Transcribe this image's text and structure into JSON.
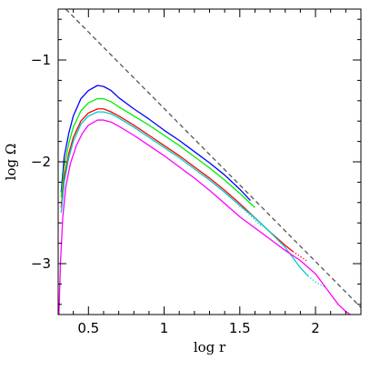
{
  "chart_data": {
    "type": "line",
    "title": "",
    "xlabel": "log r",
    "ylabel": "log Ω",
    "xlim": [
      0.3,
      2.3
    ],
    "ylim": [
      -3.5,
      -0.5
    ],
    "x_ticks_major": [
      0.5,
      1,
      1.5,
      2
    ],
    "x_tick_labels": [
      "0.5",
      "1",
      "1.5",
      "2"
    ],
    "y_ticks_major": [
      -1,
      -2,
      -3
    ],
    "y_tick_labels": [
      "−1",
      "−2",
      "−3"
    ],
    "minor_tick_step_x": 0.1,
    "minor_tick_step_y": 0.2,
    "grid": false,
    "legend": "none",
    "series": [
      {
        "color": "#0000ff",
        "style": "solid",
        "x": [
          0.32,
          0.34,
          0.37,
          0.4,
          0.45,
          0.5,
          0.56,
          0.6,
          0.65,
          0.7,
          0.8,
          0.9,
          1.0,
          1.1,
          1.2,
          1.3,
          1.4,
          1.5,
          1.57
        ],
        "y": [
          -2.3,
          -1.95,
          -1.72,
          -1.55,
          -1.38,
          -1.3,
          -1.25,
          -1.26,
          -1.3,
          -1.37,
          -1.48,
          -1.58,
          -1.69,
          -1.79,
          -1.9,
          -2.01,
          -2.13,
          -2.27,
          -2.38
        ]
      },
      {
        "color": "#00ee00",
        "style": "solid",
        "x": [
          0.32,
          0.34,
          0.37,
          0.4,
          0.45,
          0.5,
          0.56,
          0.6,
          0.65,
          0.7,
          0.8,
          0.9,
          1.0,
          1.1,
          1.2,
          1.3,
          1.4,
          1.5,
          1.6
        ],
        "y": [
          -2.35,
          -2.05,
          -1.82,
          -1.66,
          -1.5,
          -1.42,
          -1.38,
          -1.38,
          -1.41,
          -1.46,
          -1.55,
          -1.64,
          -1.74,
          -1.84,
          -1.95,
          -2.06,
          -2.18,
          -2.31,
          -2.45
        ]
      },
      {
        "color": "#ff0000",
        "style": "solid",
        "x": [
          0.32,
          0.34,
          0.37,
          0.4,
          0.45,
          0.5,
          0.56,
          0.6,
          0.65,
          0.7,
          0.8,
          0.9,
          1.0,
          1.1,
          1.2,
          1.3,
          1.4,
          1.5,
          1.6,
          1.7,
          1.8,
          1.85
        ],
        "y": [
          -2.45,
          -2.15,
          -1.92,
          -1.76,
          -1.6,
          -1.52,
          -1.48,
          -1.48,
          -1.51,
          -1.55,
          -1.64,
          -1.74,
          -1.84,
          -1.94,
          -2.05,
          -2.16,
          -2.28,
          -2.41,
          -2.55,
          -2.69,
          -2.82,
          -2.88
        ]
      },
      {
        "color": "#ff0000",
        "style": "dotted",
        "x": [
          1.85,
          1.9,
          1.95
        ],
        "y": [
          -2.88,
          -2.93,
          -2.98
        ]
      },
      {
        "color": "#00cccc",
        "style": "solid",
        "x": [
          0.32,
          0.34,
          0.37,
          0.4,
          0.45,
          0.5,
          0.56,
          0.6,
          0.65,
          0.7,
          0.8,
          0.9,
          1.0,
          1.1,
          1.2,
          1.3,
          1.4,
          1.5,
          1.6,
          1.7,
          1.8,
          1.9,
          1.95
        ],
        "y": [
          -2.5,
          -2.2,
          -1.96,
          -1.8,
          -1.63,
          -1.55,
          -1.51,
          -1.51,
          -1.53,
          -1.57,
          -1.66,
          -1.76,
          -1.86,
          -1.96,
          -2.07,
          -2.18,
          -2.3,
          -2.43,
          -2.55,
          -2.69,
          -2.84,
          -3.04,
          -3.12
        ]
      },
      {
        "color": "#00cccc",
        "style": "dotted",
        "x": [
          1.95,
          2.0,
          2.06
        ],
        "y": [
          -3.12,
          -3.18,
          -3.23
        ]
      },
      {
        "color": "#00cccc",
        "style": "dotted",
        "x": [
          1.5,
          1.55,
          1.6,
          1.65
        ],
        "y": [
          -2.43,
          -2.5,
          -2.57,
          -2.64
        ]
      },
      {
        "color": "#ff00ff",
        "style": "solid",
        "x": [
          0.305,
          0.315,
          0.33,
          0.35,
          0.38,
          0.42,
          0.46,
          0.5,
          0.56,
          0.6,
          0.65,
          0.7,
          0.8,
          0.9,
          1.0,
          1.1,
          1.2,
          1.3,
          1.4,
          1.5,
          1.6,
          1.7,
          1.8,
          1.9,
          2.0,
          2.05,
          2.1,
          2.15,
          2.2,
          2.23
        ],
        "y": [
          -3.5,
          -3.0,
          -2.55,
          -2.25,
          -2.02,
          -1.84,
          -1.72,
          -1.64,
          -1.59,
          -1.59,
          -1.61,
          -1.65,
          -1.74,
          -1.84,
          -1.94,
          -2.05,
          -2.16,
          -2.28,
          -2.41,
          -2.54,
          -2.65,
          -2.76,
          -2.87,
          -2.97,
          -3.1,
          -3.2,
          -3.3,
          -3.4,
          -3.47,
          -3.5
        ]
      },
      {
        "color": "#555555",
        "style": "dashed",
        "x": [
          0.35,
          2.3
        ],
        "y": [
          -0.5,
          -3.43
        ]
      }
    ]
  }
}
